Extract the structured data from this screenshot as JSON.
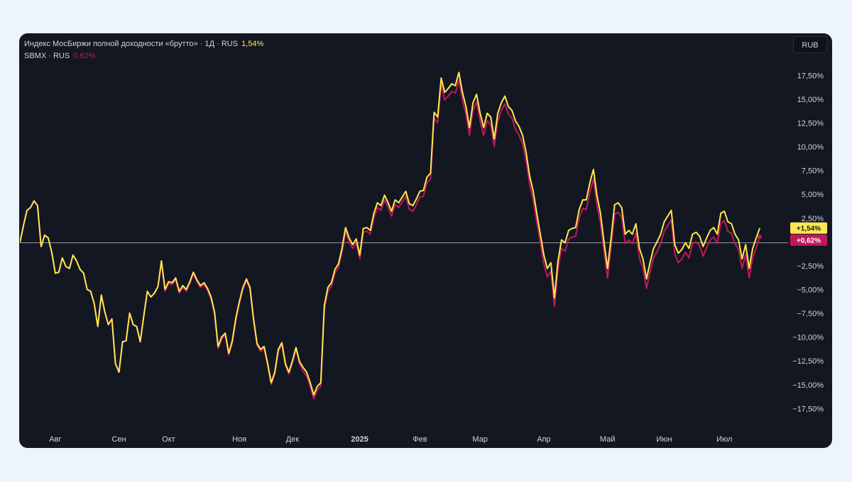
{
  "chart_data": {
    "type": "line",
    "title": "Индекс МосБиржи полной доходности «брутто» · 1Д · RUS",
    "currency": "RUB",
    "baseline": 0,
    "xlim": [
      0,
      217
    ],
    "xticks": [
      {
        "value": 10,
        "label": "Авг"
      },
      {
        "value": 28,
        "label": "Сен"
      },
      {
        "value": 42,
        "label": "Окт"
      },
      {
        "value": 62,
        "label": "Ноя"
      },
      {
        "value": 77,
        "label": "Дек"
      },
      {
        "value": 96,
        "label": "2025"
      },
      {
        "value": 113,
        "label": "Фев"
      },
      {
        "value": 130,
        "label": "Мар"
      },
      {
        "value": 148,
        "label": "Апр"
      },
      {
        "value": 166,
        "label": "Май"
      },
      {
        "value": 182,
        "label": "Июн"
      },
      {
        "value": 199,
        "label": "Июл"
      }
    ],
    "ylim": [
      -19.4,
      22
    ],
    "yticks": [
      {
        "value": 17.5,
        "label": "17,50%"
      },
      {
        "value": 15,
        "label": "15,00%"
      },
      {
        "value": 12.5,
        "label": "12,50%"
      },
      {
        "value": 10,
        "label": "10,00%"
      },
      {
        "value": 7.5,
        "label": "7,50%"
      },
      {
        "value": 5,
        "label": "5,00%"
      },
      {
        "value": 2.5,
        "label": "2,50%"
      },
      {
        "value": -2.5,
        "label": "−2,50%"
      },
      {
        "value": -5,
        "label": "−5,00%"
      },
      {
        "value": -7.5,
        "label": "−7,50%"
      },
      {
        "value": -10,
        "label": "−10,00%"
      },
      {
        "value": -12.5,
        "label": "−12,50%"
      },
      {
        "value": -15,
        "label": "−15,00%"
      },
      {
        "value": -17.5,
        "label": "−17,50%"
      }
    ],
    "series": [
      {
        "name": "SBMX · RUS",
        "color": "#c2185b",
        "legend_value": "0,62%",
        "axis_value_label": "+0,62%",
        "values": [
          0,
          1.8,
          3.4,
          3.7,
          4.4,
          3.9,
          -0.4,
          0.8,
          0.5,
          -1.0,
          -3.2,
          -3.1,
          -1.6,
          -2.5,
          -2.7,
          -1.3,
          -1.9,
          -2.8,
          -3.2,
          -4.9,
          -5.1,
          -6.4,
          -8.8,
          -5.5,
          -7.3,
          -8.6,
          -8.0,
          -12.7,
          -13.6,
          -10.4,
          -10.3,
          -7.4,
          -8.6,
          -8.8,
          -10.4,
          -7.7,
          -5.1,
          -5.7,
          -5.3,
          -4.6,
          -2.1,
          -5.1,
          -4.3,
          -4.4,
          -3.9,
          -5.3,
          -4.7,
          -5.1,
          -4.3,
          -3.3,
          -4.1,
          -4.7,
          -4.4,
          -5.0,
          -5.9,
          -7.5,
          -11.1,
          -10.1,
          -9.7,
          -11.8,
          -10.5,
          -8.1,
          -6.4,
          -4.9,
          -4.0,
          -4.9,
          -8.2,
          -10.8,
          -11.4,
          -11.1,
          -12.9,
          -14.9,
          -13.8,
          -11.4,
          -10.7,
          -12.9,
          -13.8,
          -12.6,
          -11.2,
          -12.7,
          -13.5,
          -14.0,
          -15.1,
          -16.4,
          -15.5,
          -15.1,
          -7.0,
          -5.1,
          -4.6,
          -3.2,
          -2.6,
          -1.0,
          1.2,
          0.1,
          -0.6,
          0.0,
          -1.7,
          1.1,
          1.2,
          0.9,
          2.6,
          3.7,
          3.4,
          4.5,
          3.7,
          2.8,
          4.0,
          3.7,
          4.3,
          4.9,
          3.5,
          3.3,
          4.0,
          4.8,
          4.9,
          6.3,
          6.7,
          13.1,
          12.6,
          16.7,
          15.0,
          15.4,
          15.9,
          15.7,
          17.1,
          15.0,
          13.5,
          11.3,
          13.9,
          14.8,
          12.8,
          11.3,
          12.8,
          12.4,
          10.1,
          12.8,
          13.9,
          14.6,
          13.5,
          13.1,
          11.9,
          11.3,
          10.4,
          8.6,
          6.1,
          4.5,
          2.2,
          0.0,
          -2.2,
          -3.6,
          -3.0,
          -6.7,
          -2.8,
          -0.6,
          -0.9,
          0.4,
          0.6,
          0.7,
          2.6,
          3.6,
          3.5,
          5.3,
          6.7,
          4.0,
          2.1,
          -0.9,
          -3.7,
          -0.5,
          3.0,
          3.2,
          2.7,
          -0.1,
          0.3,
          -0.1,
          1.0,
          -1.6,
          -2.7,
          -4.8,
          -3.1,
          -1.6,
          -0.9,
          -0.1,
          1.2,
          1.8,
          2.4,
          -1.2,
          -2.1,
          -1.7,
          -1.0,
          -1.6,
          -0.1,
          0.1,
          -0.3,
          -1.4,
          -0.5,
          0.3,
          0.6,
          -0.1,
          2.1,
          2.3,
          1.2,
          1.0,
          -0.1,
          -0.7,
          -2.7,
          -1.2,
          -3.7,
          -1.6,
          -0.5,
          0.62
        ]
      },
      {
        "name": "Индекс МосБиржи полной доходности «брутто» · 1Д · RUS",
        "color": "#ffe84f",
        "legend_value": "1,54%",
        "axis_value_label": "+1,54%",
        "values": [
          0,
          1.8,
          3.4,
          3.7,
          4.4,
          3.9,
          -0.4,
          0.8,
          0.5,
          -1.0,
          -3.2,
          -3.1,
          -1.6,
          -2.5,
          -2.7,
          -1.3,
          -1.9,
          -2.8,
          -3.2,
          -4.9,
          -5.1,
          -6.4,
          -8.8,
          -5.5,
          -7.3,
          -8.6,
          -8.0,
          -12.7,
          -13.6,
          -10.4,
          -10.3,
          -7.4,
          -8.6,
          -8.8,
          -10.4,
          -7.7,
          -5.1,
          -5.7,
          -5.3,
          -4.6,
          -1.9,
          -4.9,
          -4.1,
          -4.2,
          -3.7,
          -5.1,
          -4.5,
          -4.9,
          -4.1,
          -3.1,
          -3.9,
          -4.5,
          -4.2,
          -4.8,
          -5.7,
          -7.3,
          -10.9,
          -9.9,
          -9.5,
          -11.6,
          -10.3,
          -7.9,
          -6.2,
          -4.7,
          -3.8,
          -4.7,
          -8.0,
          -10.6,
          -11.2,
          -10.9,
          -12.7,
          -14.7,
          -13.6,
          -11.2,
          -10.5,
          -12.7,
          -13.6,
          -12.4,
          -11.0,
          -12.5,
          -13.1,
          -13.6,
          -14.7,
          -16.0,
          -15.1,
          -14.7,
          -6.6,
          -4.7,
          -4.2,
          -2.8,
          -2.2,
          -0.6,
          1.6,
          0.5,
          -0.2,
          0.4,
          -1.3,
          1.5,
          1.6,
          1.3,
          3.1,
          4.2,
          3.9,
          5.0,
          4.2,
          3.3,
          4.5,
          4.2,
          4.8,
          5.4,
          4.1,
          3.9,
          4.6,
          5.4,
          5.5,
          6.9,
          7.3,
          13.7,
          13.2,
          17.3,
          15.8,
          16.2,
          16.7,
          16.5,
          17.9,
          15.8,
          14.3,
          12.1,
          14.7,
          15.6,
          13.6,
          12.1,
          13.6,
          13.2,
          10.9,
          13.6,
          14.7,
          15.4,
          14.3,
          13.9,
          12.8,
          12.2,
          11.3,
          9.5,
          7.0,
          5.4,
          3.1,
          0.9,
          -1.3,
          -2.7,
          -2.1,
          -5.8,
          -1.9,
          0.3,
          0,
          1.3,
          1.5,
          1.6,
          3.5,
          4.5,
          4.5,
          6.3,
          7.7,
          5.0,
          3.1,
          0.1,
          -2.7,
          0.5,
          4.0,
          4.2,
          3.7,
          0.9,
          1.3,
          0.9,
          2.0,
          -0.6,
          -1.7,
          -3.8,
          -2.1,
          -0.6,
          0.1,
          0.9,
          2.2,
          2.8,
          3.4,
          -0.2,
          -1.1,
          -0.7,
          0,
          -0.6,
          0.9,
          1.1,
          0.7,
          -0.4,
          0.5,
          1.3,
          1.6,
          0.9,
          3.1,
          3.3,
          2.2,
          2.0,
          0.9,
          0.3,
          -1.7,
          -0.2,
          -2.7,
          -0.6,
          0.5,
          1.54
        ]
      }
    ]
  }
}
